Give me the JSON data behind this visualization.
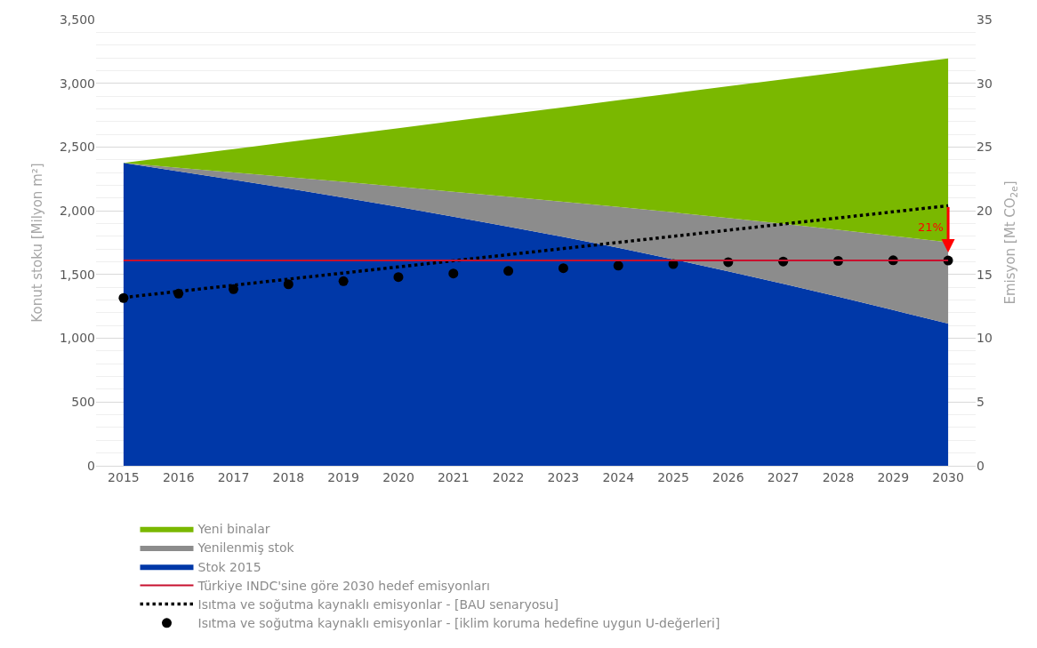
{
  "chart_data": {
    "type": "area",
    "stacked": true,
    "categories": [
      "2015",
      "2016",
      "2017",
      "2018",
      "2019",
      "2020",
      "2021",
      "2022",
      "2023",
      "2024",
      "2025",
      "2026",
      "2027",
      "2028",
      "2029",
      "2030"
    ],
    "series": [
      {
        "name": "Stok 2015",
        "color": "#0038a8",
        "values": [
          2375,
          2310,
          2243,
          2175,
          2104,
          2030,
          1954,
          1876,
          1795,
          1710,
          1620,
          1525,
          1427,
          1326,
          1222,
          1115
        ]
      },
      {
        "name": "Yenilenmiş stok",
        "color": "#8c8c8c",
        "values": [
          0,
          28,
          58,
          89,
          123,
          160,
          196,
          234,
          275,
          320,
          368,
          418,
          471,
          525,
          581,
          638
        ]
      },
      {
        "name": "Yeni binalar",
        "color": "#7ab800",
        "values": [
          0,
          92,
          183,
          275,
          367,
          458,
          553,
          648,
          742,
          837,
          934,
          1034,
          1133,
          1235,
          1338,
          1442
        ]
      },
      {
        "name": "Isıtma ve soğutma kaynaklı emisyonlar - [BAU senaryosu]",
        "color": "#000000",
        "type": "line",
        "axis": "y2",
        "line_style": "dotted",
        "marker": "none",
        "values": [
          13.2,
          13.68,
          14.16,
          14.64,
          15.12,
          15.6,
          16.08,
          16.56,
          17.04,
          17.52,
          18.0,
          18.48,
          18.96,
          19.44,
          19.92,
          20.4
        ]
      },
      {
        "name": "Isıtma ve soğutma kaynaklı emisyonlar - [iklim koruma hedefine uygun U-değerleri]",
        "color": "#000000",
        "type": "scatter",
        "axis": "y2",
        "marker": "circle",
        "values": [
          13.16,
          13.5,
          13.85,
          14.24,
          14.48,
          14.8,
          15.08,
          15.28,
          15.5,
          15.7,
          15.82,
          15.97,
          16.02,
          16.07,
          16.12,
          16.1
        ]
      }
    ],
    "ref_lines": [
      {
        "axis": "y2",
        "value": 16.1,
        "label": "Türkiye INDC'sine göre 2030 hedef emisyonları",
        "color": "#c8102e"
      }
    ],
    "annotations": [
      {
        "text": "21%",
        "x": "2030",
        "y": 1870
      }
    ],
    "ylabel": "Konut stoku [Milyon m²]",
    "y2label": "Emisyon [Mt CO$_{2e}$]",
    "ylim": [
      0,
      3500
    ],
    "yticks": [
      {
        "value": 0,
        "label": "0"
      },
      {
        "value": 500,
        "label": "500"
      },
      {
        "value": 1000,
        "label": "1,000"
      },
      {
        "value": 1500,
        "label": "1,500"
      },
      {
        "value": 2000,
        "label": "2,000"
      },
      {
        "value": 2500,
        "label": "2,500"
      },
      {
        "value": 3000,
        "label": "3,000"
      },
      {
        "value": 3500,
        "label": "3,500"
      }
    ],
    "y2lim": [
      0,
      35
    ],
    "y2ticks": [
      0,
      5,
      10,
      15,
      20,
      25,
      30,
      35
    ],
    "grid": "y",
    "legend": "bottom"
  }
}
